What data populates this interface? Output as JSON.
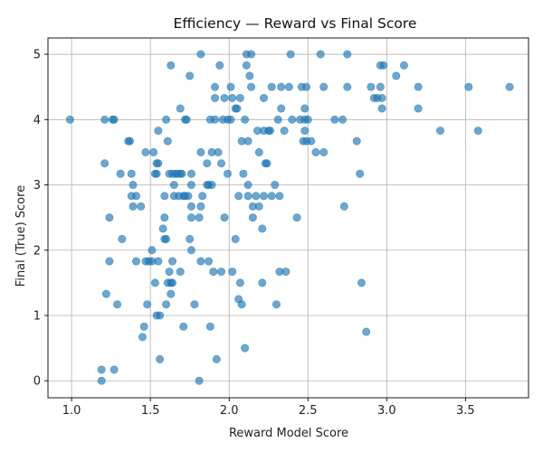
{
  "chart_data": {
    "type": "scatter",
    "title": "Efficiency — Reward vs Final Score",
    "xlabel": "Reward Model Score",
    "ylabel": "Final (True) Score",
    "xlim": [
      0.85,
      3.9
    ],
    "ylim": [
      -0.26,
      5.25
    ],
    "xticks": [
      1.0,
      1.5,
      2.0,
      2.5,
      3.0,
      3.5
    ],
    "xtick_labels": [
      "1.0",
      "1.5",
      "2.0",
      "2.5",
      "3.0",
      "3.5"
    ],
    "yticks": [
      0,
      1,
      2,
      3,
      4,
      5
    ],
    "ytick_labels": [
      "0",
      "1",
      "2",
      "3",
      "4",
      "5"
    ],
    "grid": true,
    "legend": "none",
    "marker_color": "#1f77b4",
    "marker_alpha": 0.65,
    "points": [
      [
        0.99,
        4.0
      ],
      [
        1.19,
        0.17
      ],
      [
        1.19,
        0.0
      ],
      [
        1.21,
        4.0
      ],
      [
        1.21,
        3.33
      ],
      [
        1.22,
        1.33
      ],
      [
        1.24,
        2.5
      ],
      [
        1.24,
        1.83
      ],
      [
        1.26,
        4.0
      ],
      [
        1.27,
        4.0
      ],
      [
        1.27,
        0.17
      ],
      [
        1.29,
        1.17
      ],
      [
        1.31,
        3.17
      ],
      [
        1.32,
        2.17
      ],
      [
        1.36,
        3.67
      ],
      [
        1.37,
        3.67
      ],
      [
        1.38,
        3.17
      ],
      [
        1.38,
        2.83
      ],
      [
        1.39,
        3.0
      ],
      [
        1.39,
        2.67
      ],
      [
        1.41,
        2.83
      ],
      [
        1.41,
        1.83
      ],
      [
        1.44,
        2.67
      ],
      [
        1.45,
        0.67
      ],
      [
        1.46,
        0.83
      ],
      [
        1.47,
        3.5
      ],
      [
        1.47,
        1.83
      ],
      [
        1.48,
        1.17
      ],
      [
        1.49,
        1.83
      ],
      [
        1.51,
        2.0
      ],
      [
        1.51,
        1.83
      ],
      [
        1.52,
        3.5
      ],
      [
        1.53,
        3.17
      ],
      [
        1.53,
        1.5
      ],
      [
        1.54,
        3.33
      ],
      [
        1.54,
        3.17
      ],
      [
        1.54,
        1.0
      ],
      [
        1.55,
        3.33
      ],
      [
        1.55,
        3.83
      ],
      [
        1.55,
        1.83
      ],
      [
        1.56,
        1.0
      ],
      [
        1.56,
        0.33
      ],
      [
        1.58,
        2.33
      ],
      [
        1.59,
        2.83
      ],
      [
        1.59,
        2.5
      ],
      [
        1.59,
        2.17
      ],
      [
        1.6,
        4.0
      ],
      [
        1.6,
        2.17
      ],
      [
        1.6,
        1.17
      ],
      [
        1.61,
        3.67
      ],
      [
        1.61,
        1.5
      ],
      [
        1.62,
        3.17
      ],
      [
        1.62,
        1.67
      ],
      [
        1.63,
        4.83
      ],
      [
        1.63,
        1.5
      ],
      [
        1.63,
        1.33
      ],
      [
        1.64,
        3.17
      ],
      [
        1.64,
        1.83
      ],
      [
        1.64,
        1.5
      ],
      [
        1.65,
        3.0
      ],
      [
        1.65,
        2.83
      ],
      [
        1.66,
        3.17
      ],
      [
        1.67,
        3.17
      ],
      [
        1.68,
        2.83
      ],
      [
        1.69,
        4.17
      ],
      [
        1.69,
        3.17
      ],
      [
        1.69,
        1.67
      ],
      [
        1.7,
        3.17
      ],
      [
        1.71,
        2.83
      ],
      [
        1.71,
        0.83
      ],
      [
        1.72,
        4.0
      ],
      [
        1.72,
        2.83
      ],
      [
        1.73,
        4.0
      ],
      [
        1.74,
        2.83
      ],
      [
        1.75,
        4.67
      ],
      [
        1.75,
        2.17
      ],
      [
        1.76,
        3.17
      ],
      [
        1.76,
        3.0
      ],
      [
        1.76,
        2.67
      ],
      [
        1.76,
        2.5
      ],
      [
        1.76,
        2.0
      ],
      [
        1.78,
        1.17
      ],
      [
        1.81,
        2.5
      ],
      [
        1.81,
        0.0
      ],
      [
        1.82,
        5.0
      ],
      [
        1.82,
        3.5
      ],
      [
        1.82,
        2.67
      ],
      [
        1.82,
        1.83
      ],
      [
        1.83,
        2.83
      ],
      [
        1.86,
        3.33
      ],
      [
        1.86,
        3.0
      ],
      [
        1.87,
        1.83
      ],
      [
        1.87,
        3.0
      ],
      [
        1.88,
        4.0
      ],
      [
        1.88,
        0.83
      ],
      [
        1.89,
        3.5
      ],
      [
        1.89,
        3.0
      ],
      [
        1.9,
        1.67
      ],
      [
        1.91,
        4.5
      ],
      [
        1.91,
        4.33
      ],
      [
        1.91,
        4.0
      ],
      [
        1.92,
        0.33
      ],
      [
        1.93,
        3.5
      ],
      [
        1.94,
        4.83
      ],
      [
        1.95,
        3.33
      ],
      [
        1.95,
        1.67
      ],
      [
        1.96,
        4.0
      ],
      [
        1.97,
        4.33
      ],
      [
        1.97,
        2.5
      ],
      [
        1.99,
        3.17
      ],
      [
        1.99,
        4.0
      ],
      [
        2.01,
        4.5
      ],
      [
        2.01,
        4.0
      ],
      [
        2.02,
        4.33
      ],
      [
        2.02,
        1.67
      ],
      [
        2.04,
        4.17
      ],
      [
        2.04,
        2.17
      ],
      [
        2.05,
        4.17
      ],
      [
        2.06,
        2.83
      ],
      [
        2.06,
        1.25
      ],
      [
        2.07,
        4.33
      ],
      [
        2.07,
        1.5
      ],
      [
        2.08,
        1.17
      ],
      [
        2.08,
        3.67
      ],
      [
        2.09,
        3.17
      ],
      [
        2.1,
        4.0
      ],
      [
        2.1,
        0.5
      ],
      [
        2.11,
        5.0
      ],
      [
        2.11,
        4.83
      ],
      [
        2.12,
        3.67
      ],
      [
        2.12,
        3.0
      ],
      [
        2.12,
        2.83
      ],
      [
        2.13,
        4.67
      ],
      [
        2.14,
        5.0
      ],
      [
        2.14,
        4.5
      ],
      [
        2.15,
        2.67
      ],
      [
        2.15,
        2.5
      ],
      [
        2.17,
        2.83
      ],
      [
        2.18,
        3.83
      ],
      [
        2.19,
        3.5
      ],
      [
        2.19,
        2.67
      ],
      [
        2.21,
        2.33
      ],
      [
        2.21,
        1.5
      ],
      [
        2.22,
        4.33
      ],
      [
        2.22,
        3.83
      ],
      [
        2.22,
        2.83
      ],
      [
        2.23,
        3.33
      ],
      [
        2.24,
        3.33
      ],
      [
        2.25,
        3.83
      ],
      [
        2.26,
        3.83
      ],
      [
        2.27,
        4.5
      ],
      [
        2.27,
        2.83
      ],
      [
        2.29,
        3.0
      ],
      [
        2.3,
        1.17
      ],
      [
        2.31,
        4.0
      ],
      [
        2.32,
        2.83
      ],
      [
        2.32,
        1.67
      ],
      [
        2.33,
        4.17
      ],
      [
        2.33,
        4.5
      ],
      [
        2.35,
        3.83
      ],
      [
        2.36,
        1.67
      ],
      [
        2.38,
        4.5
      ],
      [
        2.39,
        5.0
      ],
      [
        2.4,
        4.0
      ],
      [
        2.43,
        2.5
      ],
      [
        2.45,
        4.0
      ],
      [
        2.46,
        4.5
      ],
      [
        2.47,
        3.67
      ],
      [
        2.48,
        4.17
      ],
      [
        2.48,
        4.0
      ],
      [
        2.48,
        3.83
      ],
      [
        2.49,
        4.5
      ],
      [
        2.49,
        3.67
      ],
      [
        2.5,
        4.0
      ],
      [
        2.52,
        3.67
      ],
      [
        2.55,
        3.5
      ],
      [
        2.58,
        5.0
      ],
      [
        2.6,
        4.5
      ],
      [
        2.6,
        3.5
      ],
      [
        2.67,
        4.0
      ],
      [
        2.72,
        4.0
      ],
      [
        2.73,
        2.67
      ],
      [
        2.75,
        5.0
      ],
      [
        2.75,
        4.5
      ],
      [
        2.81,
        3.67
      ],
      [
        2.83,
        3.17
      ],
      [
        2.84,
        1.5
      ],
      [
        2.87,
        0.75
      ],
      [
        2.9,
        4.5
      ],
      [
        2.92,
        4.33
      ],
      [
        2.94,
        4.33
      ],
      [
        2.96,
        4.83
      ],
      [
        2.96,
        4.5
      ],
      [
        2.97,
        4.33
      ],
      [
        2.97,
        4.17
      ],
      [
        2.98,
        4.83
      ],
      [
        3.06,
        4.67
      ],
      [
        3.11,
        4.83
      ],
      [
        3.2,
        4.5
      ],
      [
        3.2,
        4.17
      ],
      [
        3.34,
        3.83
      ],
      [
        3.52,
        4.5
      ],
      [
        3.58,
        3.83
      ],
      [
        3.78,
        4.5
      ]
    ]
  }
}
